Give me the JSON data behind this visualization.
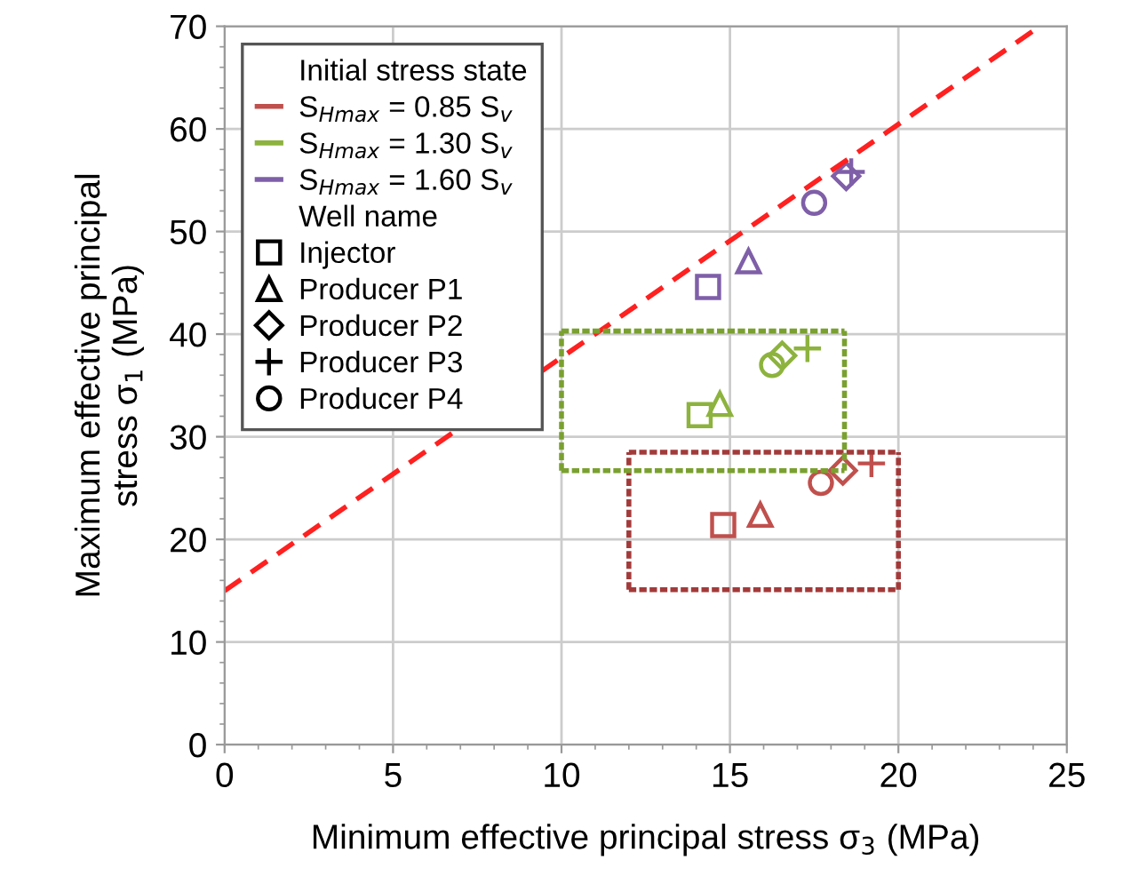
{
  "chart_data": {
    "type": "scatter",
    "xlabel": "Minimum effective principal stress σ$_{3}$ (MPa)",
    "ylabel": "Maximum effective principal\nstress σ$_{1}$ (MPa)",
    "xlim": [
      0,
      25
    ],
    "ylim": [
      0,
      70
    ],
    "xticks": [
      0,
      5,
      10,
      15,
      20,
      25
    ],
    "yticks": [
      0,
      10,
      20,
      30,
      40,
      50,
      60,
      70
    ],
    "grid": true,
    "legend": "top left",
    "legend_title": "Initial stress state",
    "annotations": [
      "Well name",
      "Injector",
      "Producer P1",
      "Producer P2",
      "Producer P3",
      "Producer P4"
    ],
    "series": [
      {
        "name": "S$_{Hmax}$ = 0.85 S$_{v}$",
        "color": "#c0504d",
        "marker": "square",
        "x": [
          14.8
        ],
        "values": [
          21.4
        ]
      },
      {
        "color": "#c0504d",
        "marker": "triangle",
        "x": [
          15.9
        ],
        "values": [
          22.4
        ]
      },
      {
        "color": "#c0504d",
        "marker": "diamond",
        "x": [
          18.35
        ],
        "values": [
          26.7
        ]
      },
      {
        "color": "#c0504d",
        "marker": "cross",
        "x": [
          19.2
        ],
        "values": [
          27.4
        ]
      },
      {
        "color": "#c0504d",
        "marker": "circle",
        "x": [
          17.7
        ],
        "values": [
          25.5
        ]
      },
      {
        "name": "S$_{Hmax}$ = 1.30 S$_{v}$",
        "color": "#8db33e",
        "marker": "square",
        "x": [
          14.1
        ],
        "values": [
          32.1
        ]
      },
      {
        "color": "#8db33e",
        "marker": "triangle",
        "x": [
          14.7
        ],
        "values": [
          33.2
        ]
      },
      {
        "color": "#8db33e",
        "marker": "diamond",
        "x": [
          16.55
        ],
        "values": [
          37.9
        ]
      },
      {
        "color": "#8db33e",
        "marker": "cross",
        "x": [
          17.3
        ],
        "values": [
          38.6
        ]
      },
      {
        "color": "#8db33e",
        "marker": "circle",
        "x": [
          16.25
        ],
        "values": [
          37.0
        ]
      },
      {
        "name": "S$_{Hmax}$ = 1.60 S$_{v}$",
        "color": "#7f5fa8",
        "marker": "square",
        "x": [
          14.35
        ],
        "values": [
          44.6
        ]
      },
      {
        "color": "#7f5fa8",
        "marker": "triangle",
        "x": [
          15.55
        ],
        "values": [
          47.1
        ]
      },
      {
        "color": "#7f5fa8",
        "marker": "diamond",
        "x": [
          18.45
        ],
        "values": [
          55.4
        ]
      },
      {
        "color": "#7f5fa8",
        "marker": "cross",
        "x": [
          18.6
        ],
        "values": [
          55.8
        ]
      },
      {
        "color": "#7f5fa8",
        "marker": "circle",
        "x": [
          17.5
        ],
        "values": [
          52.8
        ]
      },
      {
        "type": "line",
        "color": "#ff2020",
        "line_style": "dashed",
        "x": [
          0,
          24.2
        ],
        "values": [
          15,
          70
        ]
      },
      {
        "type": "line",
        "color": "#a33a3a",
        "line_style": "dotted",
        "x": [
          12,
          20
        ],
        "values": [
          15.1,
          15.1
        ]
      },
      {
        "type": "line",
        "color": "#a33a3a",
        "line_style": "dotted",
        "x": [
          12,
          20
        ],
        "values": [
          28.5,
          28.5
        ]
      },
      {
        "type": "line",
        "color": "#a33a3a",
        "line_style": "dotted",
        "x": [
          12,
          12
        ],
        "values": [
          15.1,
          28.5
        ]
      },
      {
        "type": "line",
        "color": "#a33a3a",
        "line_style": "dotted",
        "x": [
          20,
          20
        ],
        "values": [
          15.1,
          28.5
        ]
      },
      {
        "type": "line",
        "color": "#7aa030",
        "line_style": "dotted",
        "x": [
          10,
          18.4
        ],
        "values": [
          26.7,
          26.7
        ]
      },
      {
        "type": "line",
        "color": "#7aa030",
        "line_style": "dotted",
        "x": [
          10,
          18.4
        ],
        "values": [
          40.3,
          40.3
        ]
      },
      {
        "type": "line",
        "color": "#7aa030",
        "line_style": "dotted",
        "x": [
          10,
          10
        ],
        "values": [
          26.7,
          40.3
        ]
      },
      {
        "type": "line",
        "color": "#7aa030",
        "line_style": "dotted",
        "x": [
          18.4,
          18.4
        ],
        "values": [
          26.7,
          40.3
        ]
      }
    ]
  }
}
